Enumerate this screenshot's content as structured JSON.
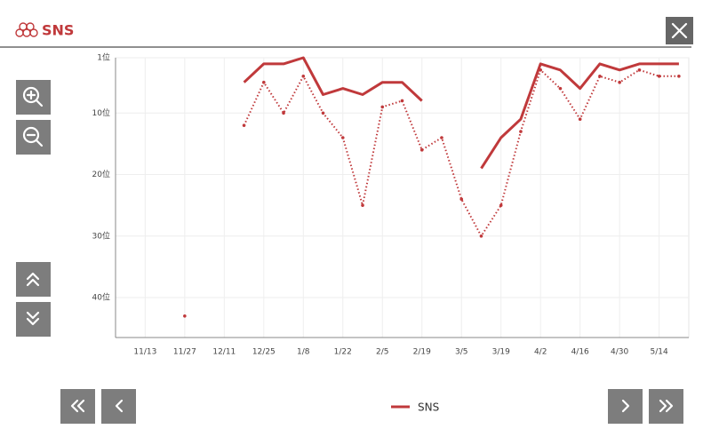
{
  "header": {
    "title": "SNS"
  },
  "chart_data": {
    "type": "line",
    "categories": [
      null,
      "11/13",
      null,
      "11/27",
      null,
      "12/11",
      null,
      "12/25",
      null,
      "1/8",
      null,
      "1/22",
      null,
      "2/5",
      null,
      "2/19",
      null,
      "3/5",
      null,
      "3/19",
      null,
      "4/2",
      null,
      "4/16",
      null,
      "4/30",
      null,
      "5/14",
      null
    ],
    "series": [
      {
        "name": "SNS",
        "color": "#c0393b",
        "style": "solid",
        "values": [
          null,
          null,
          null,
          null,
          null,
          null,
          5,
          2,
          2,
          1,
          7,
          6,
          7,
          5,
          5,
          8,
          null,
          null,
          19,
          14,
          11,
          2,
          3,
          6,
          2,
          3,
          2,
          2,
          2
        ]
      },
      {
        "color": "#c0393b",
        "style": "dotted",
        "values": [
          null,
          null,
          null,
          43,
          null,
          null,
          12,
          5,
          10,
          4,
          10,
          14,
          25,
          9,
          8,
          16,
          14,
          24,
          30,
          25,
          13,
          3,
          6,
          11,
          4,
          5,
          3,
          4,
          4
        ]
      }
    ],
    "ylim": [
      1,
      46.5
    ],
    "inverted": true,
    "yticks": [
      {
        "value": 1,
        "label": "1位"
      },
      {
        "value": 10,
        "label": "10位"
      },
      {
        "value": 20,
        "label": "20位"
      },
      {
        "value": 30,
        "label": "30位"
      },
      {
        "value": 40,
        "label": "40位"
      }
    ],
    "grid": true
  }
}
